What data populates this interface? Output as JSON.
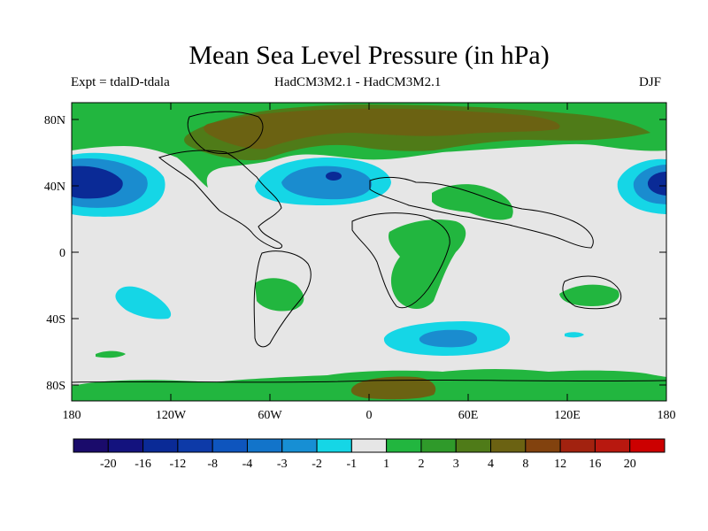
{
  "title": "Mean Sea Level Pressure (in hPa)",
  "subtitle_left": "Expt = tdalD-tdala",
  "subtitle_center": "HadCM3M2.1 - HadCM3M2.1",
  "subtitle_right": "DJF",
  "lat_labels": [
    "80N",
    "40N",
    "0",
    "40S",
    "80S"
  ],
  "lon_labels": [
    "180",
    "120W",
    "60W",
    "0",
    "60E",
    "120E",
    "180"
  ],
  "colorbar": {
    "colors": [
      "#1a0b6b",
      "#13127e",
      "#0a2a96",
      "#0d3aa8",
      "#0e55be",
      "#1274ca",
      "#178fd4",
      "#15d6e6",
      "#e6e6e6",
      "#22b63f",
      "#2f9a2a",
      "#4f7b18",
      "#6b6212",
      "#82420e",
      "#a2220f",
      "#b8180f",
      "#cc0000"
    ],
    "labels": [
      "-20",
      "-16",
      "-12",
      "-8",
      "-4",
      "-3",
      "-2",
      "-1",
      "1",
      "2",
      "3",
      "4",
      "8",
      "12",
      "16",
      "20"
    ]
  },
  "colors": {
    "neutral": "#e6e6e6",
    "green": "#22b63f",
    "dark_green": "#4f7b18",
    "brown": "#6b6212",
    "cyan": "#15d6e6",
    "mid_blue": "#1a8ccf",
    "dark_blue": "#0a2a96"
  }
}
